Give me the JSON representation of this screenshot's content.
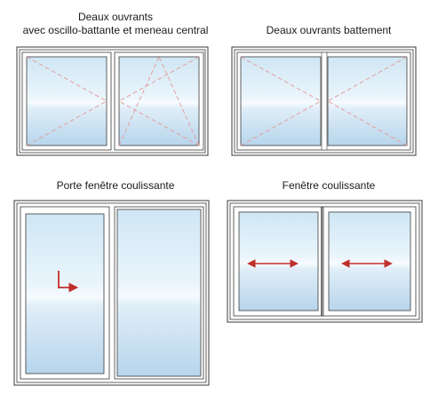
{
  "windows": [
    {
      "id": "w1",
      "title_lines": [
        "Deaux ouvrants",
        "avec oscillo-battante et meneau central"
      ]
    },
    {
      "id": "w2",
      "title_lines": [
        "Deaux ouvrants battement"
      ]
    },
    {
      "id": "w3",
      "title_lines": [
        "Porte fenêtre coulissante"
      ]
    },
    {
      "id": "w4",
      "title_lines": [
        "Fenêtre coulissante"
      ]
    }
  ],
  "colors": {
    "frame": "#3a3a3a",
    "glass_top": "#cfe6f4",
    "glass_mid": "#f4fbff",
    "glass_bottom": "#b9d7ee",
    "dash": "#e3a0a0",
    "arrow": "#c0302a"
  }
}
